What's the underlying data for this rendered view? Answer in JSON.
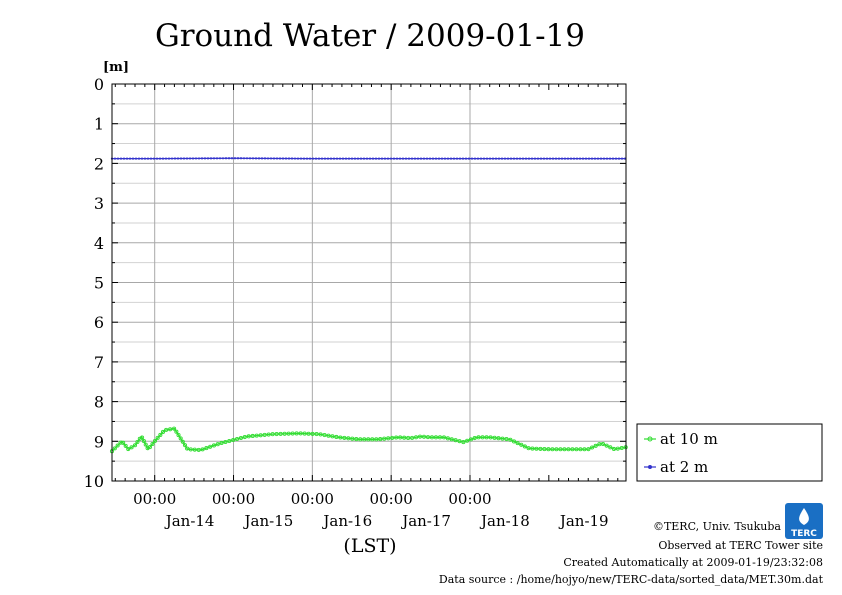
{
  "chart_data": {
    "type": "line",
    "title": "Ground Water / 2009-01-19",
    "ylabel": "[m]",
    "xlabel": "(LST)",
    "ylim": [
      0,
      10
    ],
    "y_inverted": true,
    "y_ticks": [
      "0",
      "1",
      "2",
      "3",
      "4",
      "5",
      "6",
      "7",
      "8",
      "9",
      "10"
    ],
    "x_range": [
      "2009-01-13 11:00",
      "2009-01-19 23:30"
    ],
    "x_time_labels": [
      "00:00",
      "00:00",
      "00:00",
      "00:00",
      "00:00"
    ],
    "x_date_labels": [
      "Jan-14",
      "Jan-15",
      "Jan-16",
      "Jan-17",
      "Jan-18",
      "Jan-19"
    ],
    "grid": true,
    "legend_position": "right",
    "series": [
      {
        "name": "at 10 m",
        "color": "#33dd33",
        "marker": "circle",
        "x": [
          "2009-01-13 11:00",
          "2009-01-13 14:00",
          "2009-01-13 16:00",
          "2009-01-13 18:00",
          "2009-01-13 20:00",
          "2009-01-13 22:00",
          "2009-01-14 00:00",
          "2009-01-14 03:00",
          "2009-01-14 06:00",
          "2009-01-14 10:00",
          "2009-01-14 14:00",
          "2009-01-14 20:00",
          "2009-01-15 04:00",
          "2009-01-15 12:00",
          "2009-01-15 20:00",
          "2009-01-16 02:00",
          "2009-01-16 08:00",
          "2009-01-16 14:00",
          "2009-01-16 20:00",
          "2009-01-17 02:00",
          "2009-01-17 06:00",
          "2009-01-17 09:00",
          "2009-01-17 12:00",
          "2009-01-17 16:00",
          "2009-01-17 22:00",
          "2009-01-18 02:00",
          "2009-01-18 06:00",
          "2009-01-18 12:00",
          "2009-01-18 18:00",
          "2009-01-19 00:00",
          "2009-01-19 06:00",
          "2009-01-19 12:00",
          "2009-01-19 16:00",
          "2009-01-19 20:00",
          "2009-01-19 23:30"
        ],
        "values": [
          9.25,
          9.0,
          9.2,
          9.1,
          8.88,
          9.2,
          9.0,
          8.72,
          8.68,
          9.2,
          9.22,
          9.05,
          8.88,
          8.82,
          8.8,
          8.82,
          8.9,
          8.95,
          8.95,
          8.9,
          8.92,
          8.88,
          8.9,
          8.9,
          9.02,
          8.9,
          8.9,
          8.95,
          9.18,
          9.2,
          9.2,
          9.2,
          9.05,
          9.2,
          9.15
        ]
      },
      {
        "name": "at 2 m",
        "color": "#3333cc",
        "marker": "dot",
        "x": [
          "2009-01-13 11:00",
          "2009-01-14 00:00",
          "2009-01-15 00:00",
          "2009-01-16 00:00",
          "2009-01-17 00:00",
          "2009-01-18 00:00",
          "2009-01-19 00:00",
          "2009-01-19 23:30"
        ],
        "values": [
          1.88,
          1.88,
          1.87,
          1.88,
          1.88,
          1.88,
          1.88,
          1.88
        ]
      }
    ]
  },
  "credits": {
    "copyright": "©TERC, Univ. Tsukuba",
    "observed": "Observed at TERC Tower site",
    "created": "Created Automatically at 2009-01-19/23:32:08",
    "source": "Data source : /home/hojyo/new/TERC-data/sorted_data/MET.30m.dat"
  },
  "logo": {
    "text": "TERC",
    "color": "#1a6fc4"
  }
}
